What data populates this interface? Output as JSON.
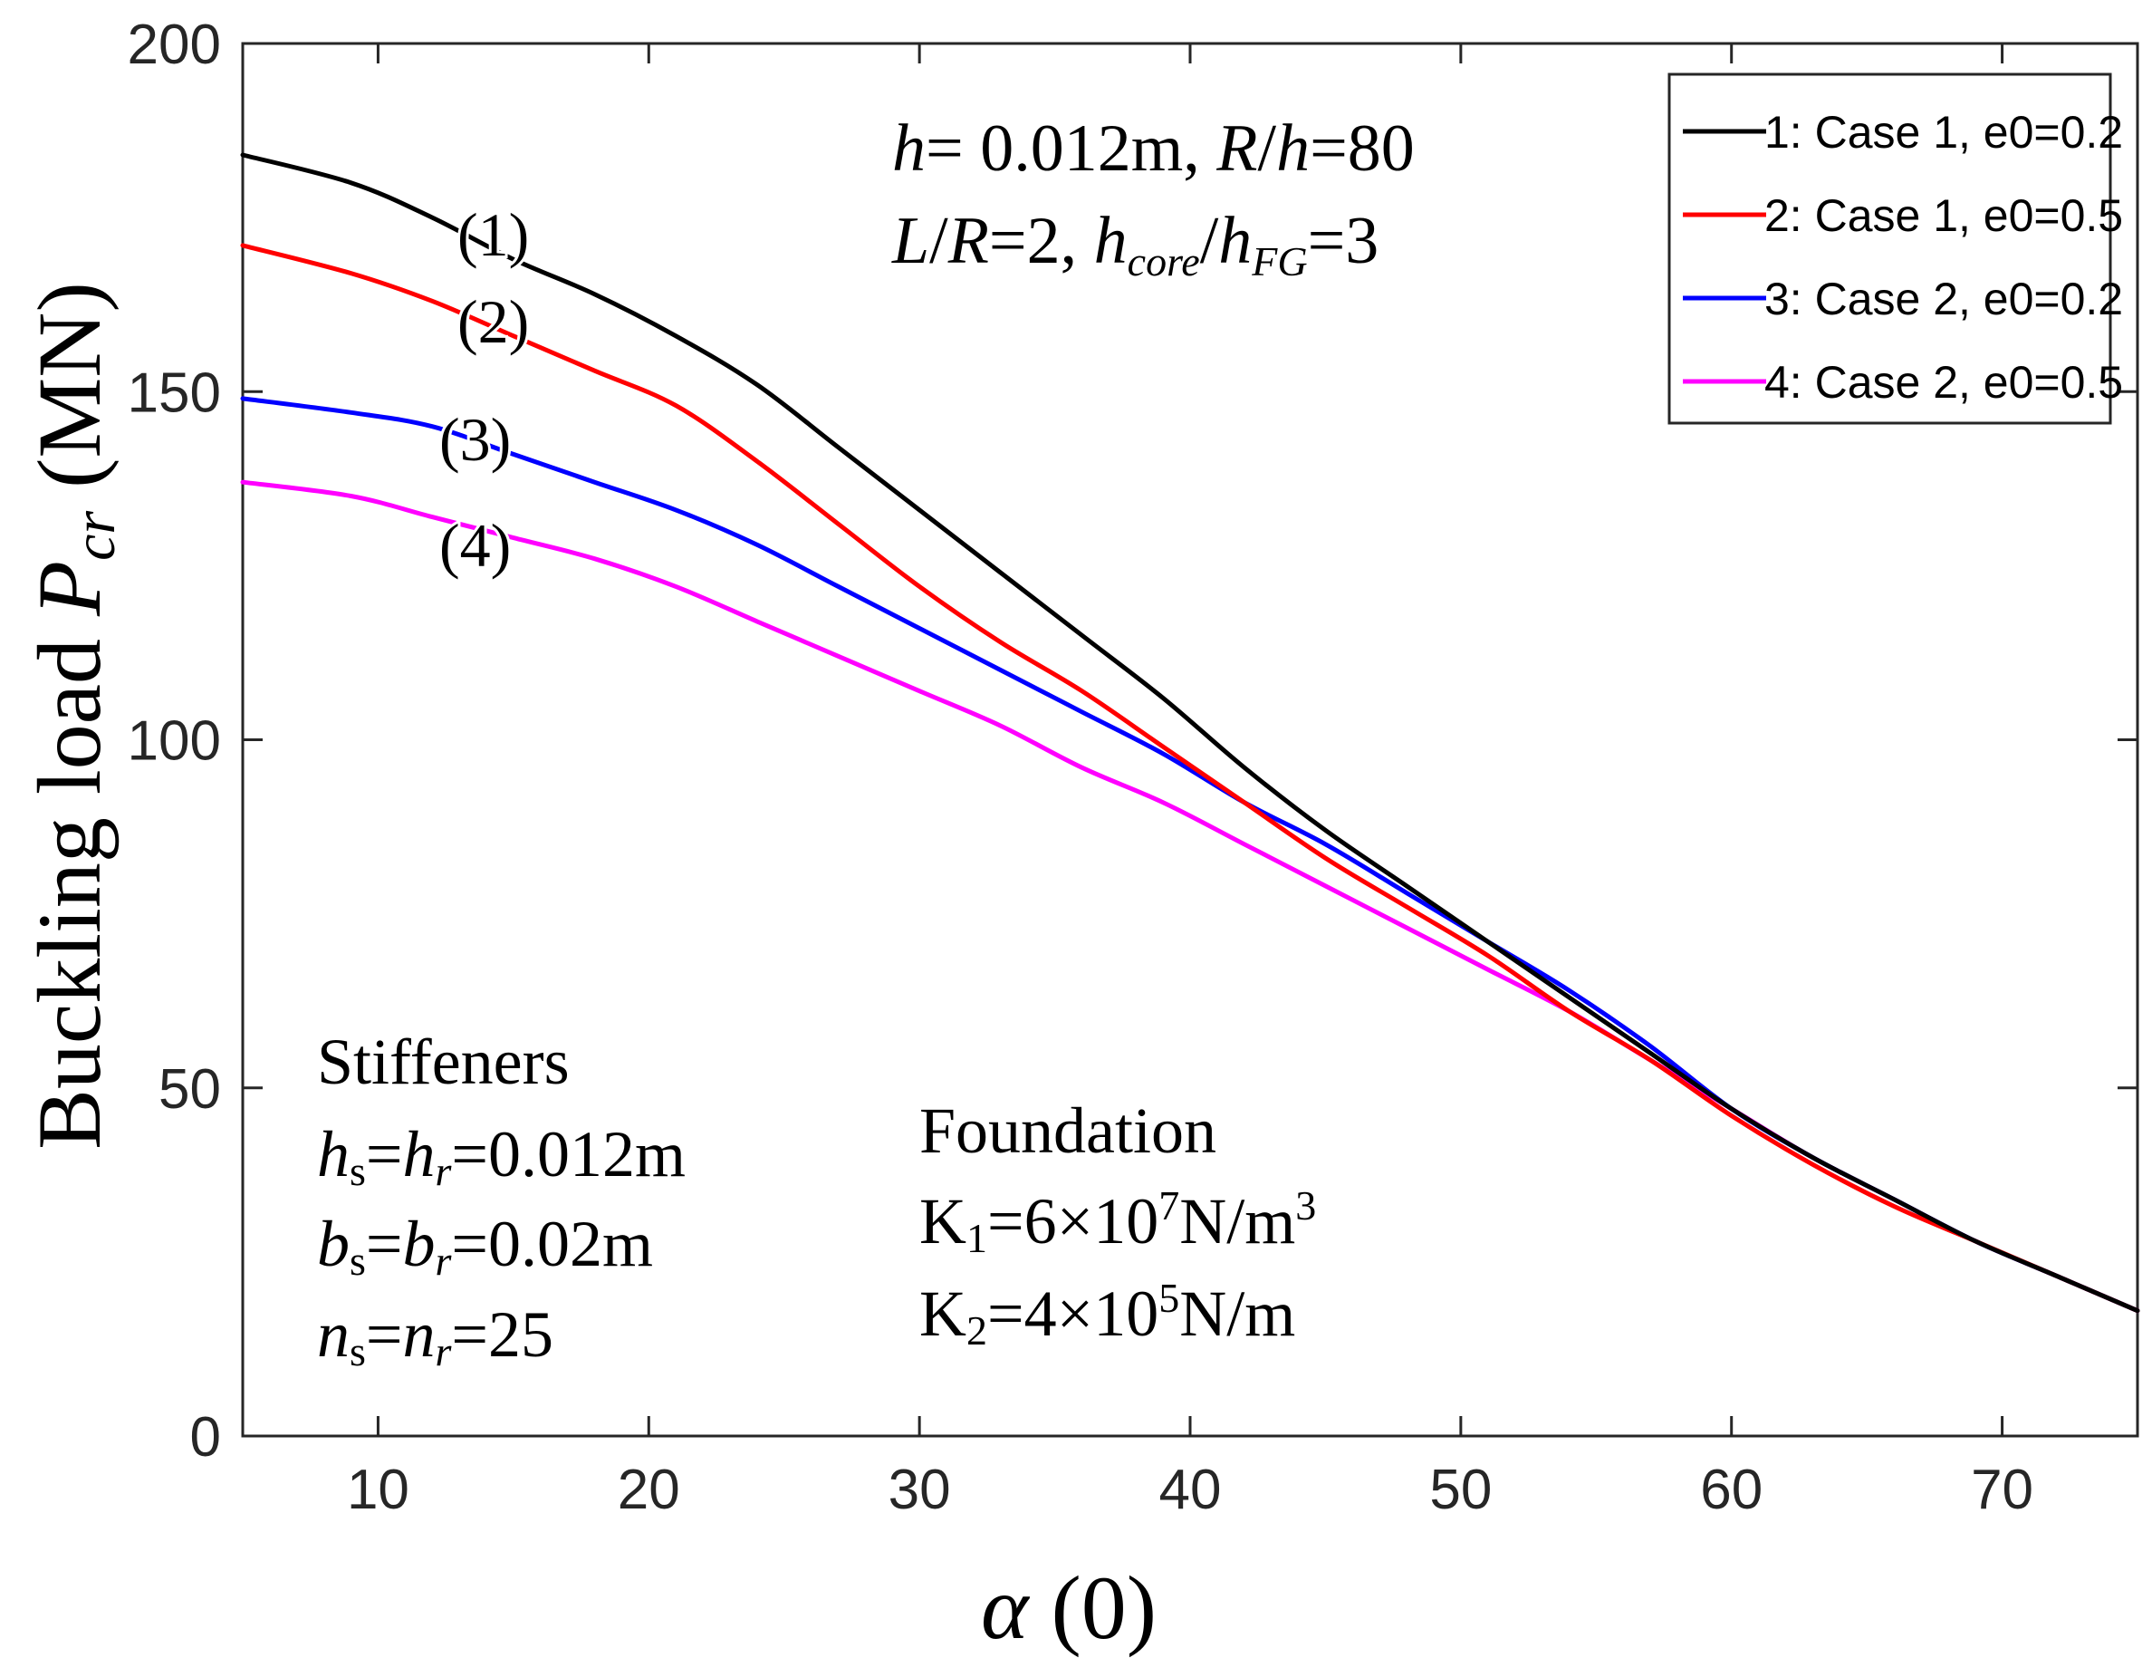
{
  "chart_data": {
    "type": "line",
    "xlabel_symbol": "α",
    "xlabel_unit": "(0)",
    "ylabel_main": "Buckling load",
    "ylabel_symbol": "P",
    "ylabel_sub": "cr",
    "ylabel_unit": "(MN)",
    "xlim": [
      5,
      75
    ],
    "ylim": [
      0,
      200
    ],
    "xticks": [
      "10",
      "20",
      "30",
      "40",
      "50",
      "60",
      "70"
    ],
    "yticks": [
      "0",
      "50",
      "100",
      "150",
      "200"
    ],
    "grid": false,
    "legend_position": "top-right",
    "series": [
      {
        "name": "1: Case 1, e0=0.2",
        "color": "#000000",
        "curve_label": "(1)",
        "x": [
          5,
          9,
          12,
          15,
          18,
          21,
          24,
          27,
          30,
          33,
          36,
          39,
          42,
          45,
          48,
          51,
          54,
          57,
          60,
          63,
          66,
          69,
          72,
          75
        ],
        "values": [
          184,
          180,
          175,
          169,
          164,
          158,
          151,
          142,
          133,
          124,
          115,
          106,
          96,
          87,
          79,
          71,
          63,
          55,
          47,
          40,
          34,
          28,
          23,
          18
        ]
      },
      {
        "name": "2: Case 1, e0=0.5",
        "color": "#ff0000",
        "curve_label": "(2)",
        "x": [
          5,
          9,
          12,
          15,
          18,
          21,
          24,
          27,
          30,
          33,
          36,
          39,
          42,
          45,
          48,
          51,
          54,
          57,
          60,
          63,
          66,
          69,
          72,
          75
        ],
        "values": [
          171,
          167,
          163,
          158,
          153,
          148,
          140,
          131,
          122,
          114,
          107,
          99,
          91,
          83,
          76,
          69,
          61,
          54,
          46,
          39,
          33,
          28,
          23,
          18
        ]
      },
      {
        "name": "3: Case 2, e0=0.2",
        "color": "#0000ff",
        "curve_label": "(3)",
        "x": [
          5,
          9,
          12,
          15,
          18,
          21,
          24,
          27,
          30,
          33,
          36,
          39,
          42,
          45,
          48,
          51,
          54,
          57,
          60,
          63,
          66,
          69,
          72,
          75
        ],
        "values": [
          149,
          147,
          145,
          141,
          137,
          133,
          128,
          122,
          116,
          110,
          104,
          98,
          91,
          85,
          78,
          71,
          64,
          56,
          47,
          40,
          34,
          28,
          23,
          18
        ]
      },
      {
        "name": "4: Case 2, e0=0.5",
        "color": "#ff00ff",
        "curve_label": "(4)",
        "x": [
          5,
          9,
          12,
          15,
          18,
          21,
          24,
          27,
          30,
          33,
          36,
          39,
          42,
          45,
          48,
          51,
          54,
          57,
          60,
          63,
          66,
          69,
          72,
          75
        ],
        "values": [
          137,
          135,
          132,
          129,
          126,
          122,
          117,
          112,
          107,
          102,
          96,
          91,
          85,
          79,
          73,
          67,
          61,
          54,
          47,
          40,
          34,
          28,
          23,
          18
        ]
      }
    ],
    "annotations": {
      "params": {
        "h_sym": "h",
        "h_val": "= 0.012m, ",
        "r_sym": "R",
        "slash": "/",
        "h_sym2": "h",
        "rh_val": "=80",
        "l_sym": "L",
        "r_sym2": "R",
        "lr_val": "=2, ",
        "hcore_sym": "h",
        "hcore_sub": "core",
        "hfg_sym": "h",
        "hfg_sub": "FG",
        "ratio_val": "=3"
      },
      "stiffeners": {
        "title": "Stiffeners",
        "line1": {
          "a": "h",
          "a_sub": "s",
          "eq": "=",
          "b": "h",
          "b_sub": "r",
          "val": "=0.012m"
        },
        "line2": {
          "a": "b",
          "a_sub": "s",
          "eq": "=",
          "b": "b",
          "b_sub": "r",
          "val": "=0.02m"
        },
        "line3": {
          "a": "n",
          "a_sub": "s",
          "eq": "=",
          "b": "n",
          "b_sub": "r",
          "val": "=25"
        }
      },
      "foundation": {
        "title": "Foundation",
        "k1": {
          "sym": "K",
          "sub": "1",
          "pre": "=6×10",
          "exp": "7",
          "unit": "N/m",
          "unit_exp": "3"
        },
        "k2": {
          "sym": "K",
          "sub": "2",
          "pre": "=4×10",
          "exp": "5",
          "unit": "N/m"
        }
      }
    }
  }
}
